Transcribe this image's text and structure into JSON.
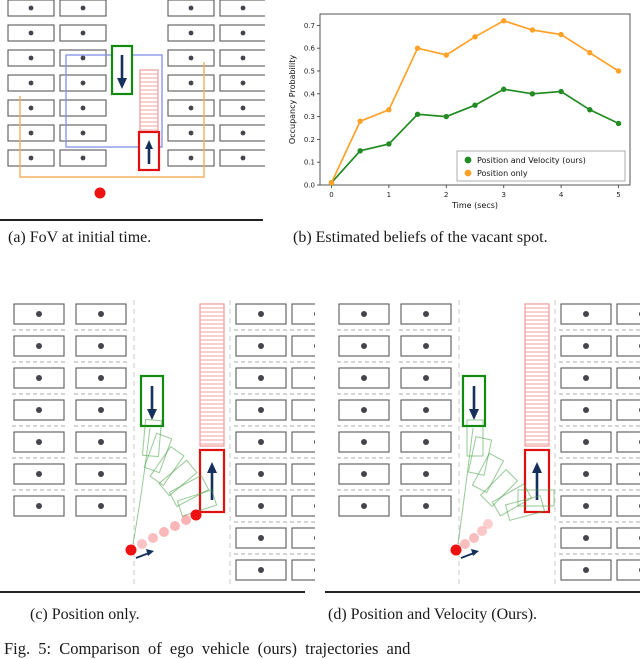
{
  "figure": {
    "captions": {
      "a": "(a) FoV at initial time.",
      "b": "(b) Estimated beliefs of the vacant spot.",
      "c": "(c) Position only.",
      "d": "(d) Position and Velocity (Ours).",
      "figure": "Fig. 5: Comparison of ego vehicle (ours) trajectories and"
    }
  },
  "icons": {
    "down-arrow": "↓",
    "up-arrow": "↑",
    "velocity-arrow": "➤"
  },
  "colors": {
    "spot-green": "#128a12",
    "spot-red": "#e01010",
    "hatch-pink": "#f2a0a0",
    "vehicle-red": "#ee1111",
    "fov-blue": "#8090e8",
    "path-orange": "#f0b060",
    "arrow-navy": "#16305e",
    "dot-gray": "#44444c",
    "traj-green": "#3f9e3f"
  },
  "chart_data": {
    "type": "line",
    "title": "",
    "xlabel": "Time (secs)",
    "ylabel": "Occupancy Probability",
    "xlim": [
      -0.2,
      5.2
    ],
    "ylim": [
      0,
      0.75
    ],
    "x_ticks": [
      0,
      1,
      2,
      3,
      4,
      5
    ],
    "y_ticks": [
      0.0,
      0.1,
      0.2,
      0.3,
      0.4,
      0.5,
      0.6,
      0.7
    ],
    "grid": false,
    "marker": "circle",
    "legend_position": "lower right",
    "x": [
      0,
      0.5,
      1,
      1.5,
      2,
      2.5,
      3,
      3.5,
      4,
      4.5,
      5
    ],
    "series": [
      {
        "name": "Position and Velocity (ours)",
        "color": "#228B22",
        "values": [
          0.01,
          0.15,
          0.18,
          0.31,
          0.3,
          0.35,
          0.42,
          0.4,
          0.41,
          0.33,
          0.27
        ]
      },
      {
        "name": "Position only",
        "color": "#FFA128",
        "values": [
          0.01,
          0.28,
          0.33,
          0.6,
          0.57,
          0.65,
          0.72,
          0.68,
          0.66,
          0.58,
          0.5
        ]
      }
    ]
  }
}
